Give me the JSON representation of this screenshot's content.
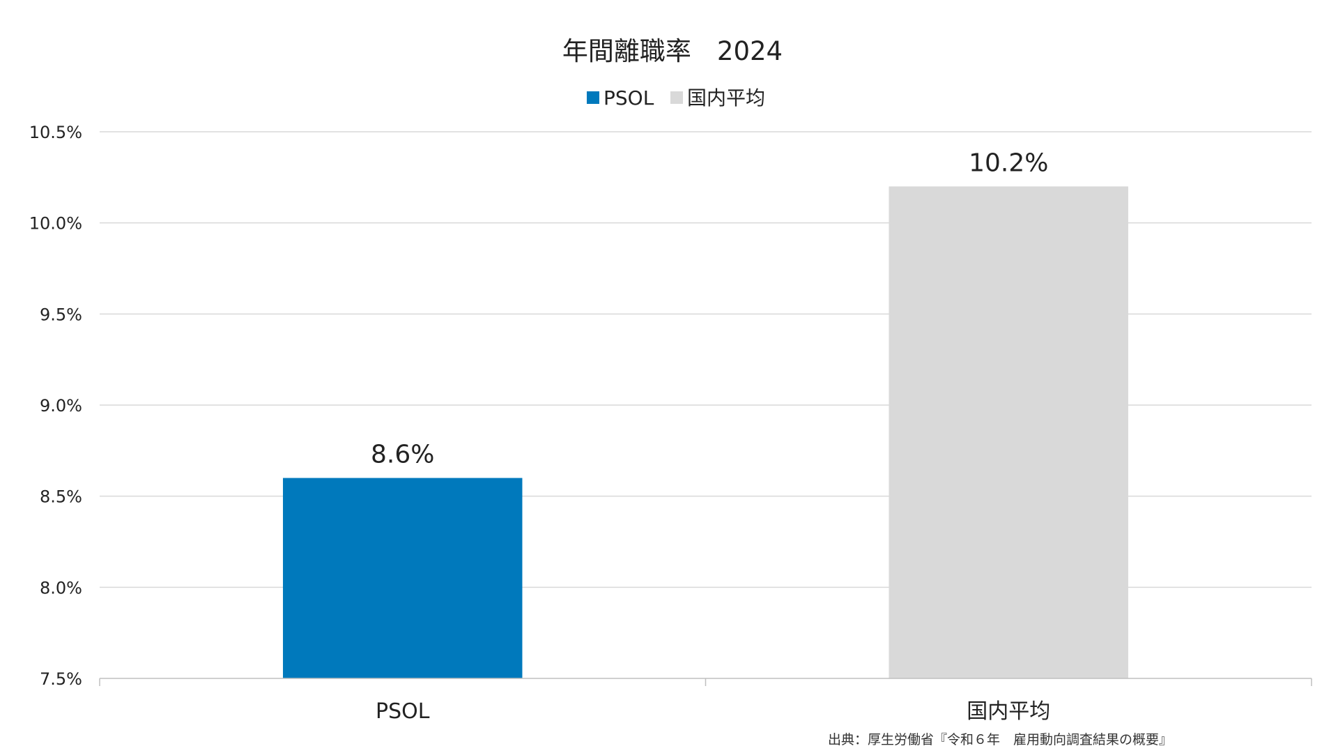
{
  "chart_data": {
    "type": "bar",
    "title": "年間離職率　2024",
    "categories": [
      "PSOL",
      "国内平均"
    ],
    "values": [
      8.6,
      10.2
    ],
    "data_labels": [
      "8.6%",
      "10.2%"
    ],
    "bar_colors": [
      "#0079BC",
      "#D9D9D9"
    ],
    "legend": [
      {
        "label": "PSOL",
        "color": "#0079BC"
      },
      {
        "label": "国内平均",
        "color": "#D9D9D9"
      }
    ],
    "legend_position": "top-center",
    "ylim": [
      7.5,
      10.5
    ],
    "yticks": [
      7.5,
      8.0,
      8.5,
      9.0,
      9.5,
      10.0,
      10.5
    ],
    "ytick_labels": [
      "7.5%",
      "8.0%",
      "8.5%",
      "9.0%",
      "9.5%",
      "10.0%",
      "10.5%"
    ],
    "grid": true,
    "xlabel": "",
    "ylabel": ""
  },
  "source_note": "出典：厚生労働省『令和６年　雇用動向調査結果の概要』"
}
